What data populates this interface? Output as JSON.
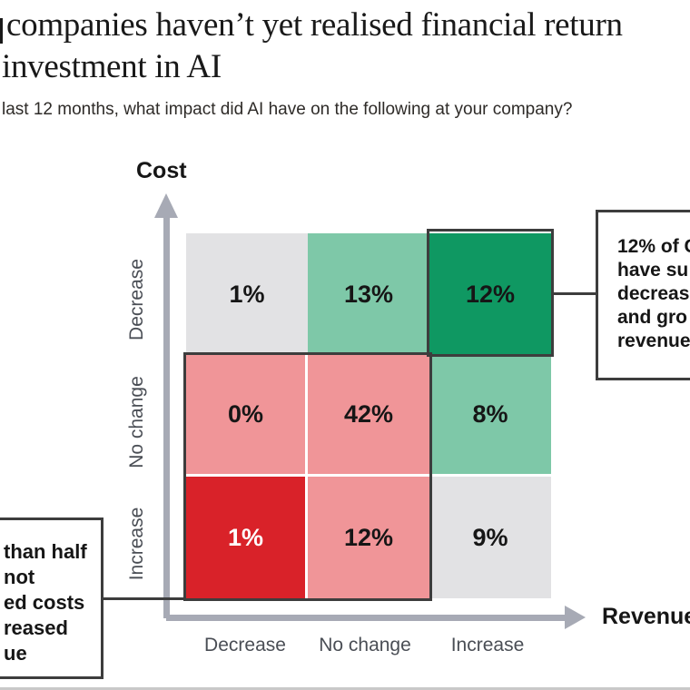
{
  "header": {
    "title_line1": "companies haven’t yet realised financial return",
    "title_line2": "investment in AI",
    "subtitle": "last 12 months, what impact did AI have on the following at your company?"
  },
  "chart_data": {
    "type": "heatmap",
    "title_visible": "companies haven’t yet realised financial return investment in AI",
    "question_visible": "last 12 months, what impact did AI have on the following at your company?",
    "x_axis": {
      "label": "Revenue",
      "categories": [
        "Decrease",
        "No change",
        "Increase"
      ]
    },
    "y_axis": {
      "label": "Cost",
      "categories": [
        "Decrease",
        "No change",
        "Increase"
      ]
    },
    "rows": [
      {
        "cost": "Decrease",
        "values": [
          "1%",
          "13%",
          "12%"
        ]
      },
      {
        "cost": "No change",
        "values": [
          "0%",
          "42%",
          "8%"
        ]
      },
      {
        "cost": "Increase",
        "values": [
          "1%",
          "12%",
          "9%"
        ]
      }
    ],
    "cell_color_keys": [
      [
        "light_gray",
        "mid_green",
        "dark_green"
      ],
      [
        "salmon",
        "salmon",
        "mid_green"
      ],
      [
        "red",
        "salmon",
        "light_gray"
      ]
    ],
    "highlighted_cells": [
      {
        "value": "12%",
        "position": "cost Decrease / revenue Increase",
        "style": "dark outline"
      },
      {
        "values": [
          "0%",
          "42%",
          "1%",
          "12%"
        ],
        "position": "cost No change+Increase / revenue Decrease+No change",
        "style": "dark outline block"
      }
    ],
    "legend_position": "none",
    "grid": "off"
  },
  "annotations": {
    "right_box": {
      "lines": [
        "12% of C",
        "have su",
        "decreas",
        "and gro",
        "revenue"
      ]
    },
    "left_box": {
      "lines": [
        "than half",
        "not",
        "ed costs",
        "reased",
        "ue"
      ]
    }
  },
  "colors": {
    "cell_dark_green": "#0f9862",
    "cell_mid_green": "#7ec8a8",
    "cell_light_gray": "#e2e2e4",
    "cell_salmon": "#f09598",
    "cell_red": "#d92229",
    "axis_gray": "#a7aab5",
    "highlight_border": "#3d3d3d",
    "category_label_gray": "#4a4e55"
  }
}
